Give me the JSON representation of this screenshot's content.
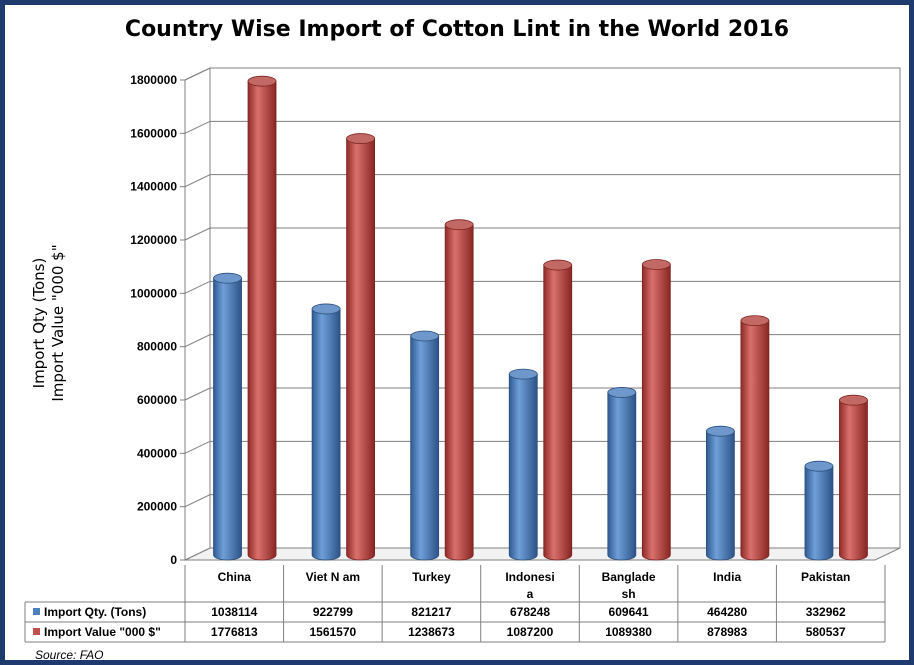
{
  "chart_data": {
    "type": "bar",
    "title": "Country Wise Import of Cotton Lint in the World 2016",
    "ylabel": [
      "Import Qty (Tons)",
      "Import Value \"000 $\""
    ],
    "xlabel": "",
    "ylim": [
      0,
      1800000
    ],
    "yticks": [
      "0",
      "200000",
      "400000",
      "600000",
      "800000",
      "1000000",
      "1200000",
      "1400000",
      "1600000",
      "1800000"
    ],
    "category_labels": [
      [
        "China"
      ],
      [
        "Viet N am"
      ],
      [
        "Turkey"
      ],
      [
        "Indonesi",
        "a"
      ],
      [
        "Banglade",
        "sh"
      ],
      [
        "India"
      ],
      [
        "Pakistan"
      ]
    ],
    "categories": [
      "China",
      "Viet Nam",
      "Turkey",
      "Indonesia",
      "Bangladesh",
      "India",
      "Pakistan"
    ],
    "series": [
      {
        "name": "Import Qty. (Tons)",
        "values": [
          1038114,
          922799,
          821217,
          678248,
          609641,
          464280,
          332962
        ],
        "labels": [
          "1038114",
          "922799",
          "821217",
          "678248",
          "609641",
          "464280",
          "332962"
        ],
        "color": "#4f81bd"
      },
      {
        "name": "Import Value \"000 $\"",
        "values": [
          1776813,
          1561570,
          1238673,
          1087200,
          1089380,
          878983,
          580537
        ],
        "labels": [
          "1776813",
          "1561570",
          "1238673",
          "1087200",
          "1089380",
          "878983",
          "580537"
        ],
        "color": "#c0504d"
      }
    ],
    "grid": true,
    "legend": "data-table",
    "source": "Source: FAO"
  }
}
